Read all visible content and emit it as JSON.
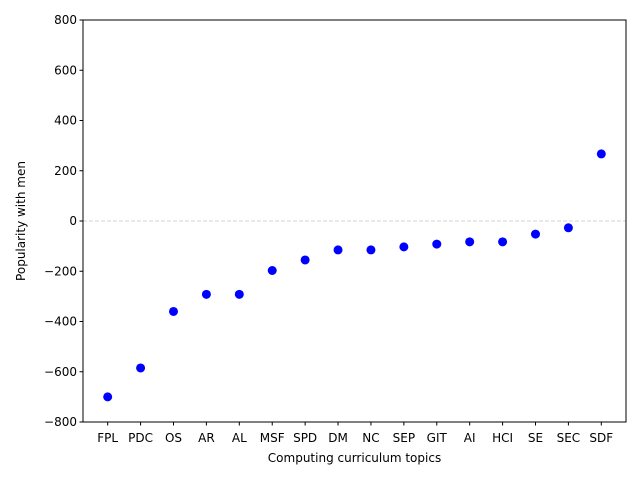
{
  "chart_data": {
    "type": "scatter",
    "categories": [
      "FPL",
      "PDC",
      "OS",
      "AR",
      "AL",
      "MSF",
      "SPD",
      "DM",
      "NC",
      "SEP",
      "GIT",
      "AI",
      "HCI",
      "SE",
      "SEC",
      "SDF"
    ],
    "values": [
      -700,
      -585,
      -360,
      -292,
      -292,
      -197,
      -155,
      -115,
      -115,
      -103,
      -92,
      -83,
      -83,
      -52,
      -27,
      267
    ],
    "xlabel": "Computing curriculum topics",
    "ylabel": "Popularity with men",
    "ylim": [
      -800,
      800
    ],
    "yticks": [
      -800,
      -600,
      -400,
      -200,
      0,
      200,
      400,
      600,
      800
    ],
    "reference_line": {
      "y": 0,
      "style": "dashed",
      "color": "#d3d3d3"
    },
    "marker_color": "#0000ff",
    "grid": false,
    "legend": "none"
  }
}
